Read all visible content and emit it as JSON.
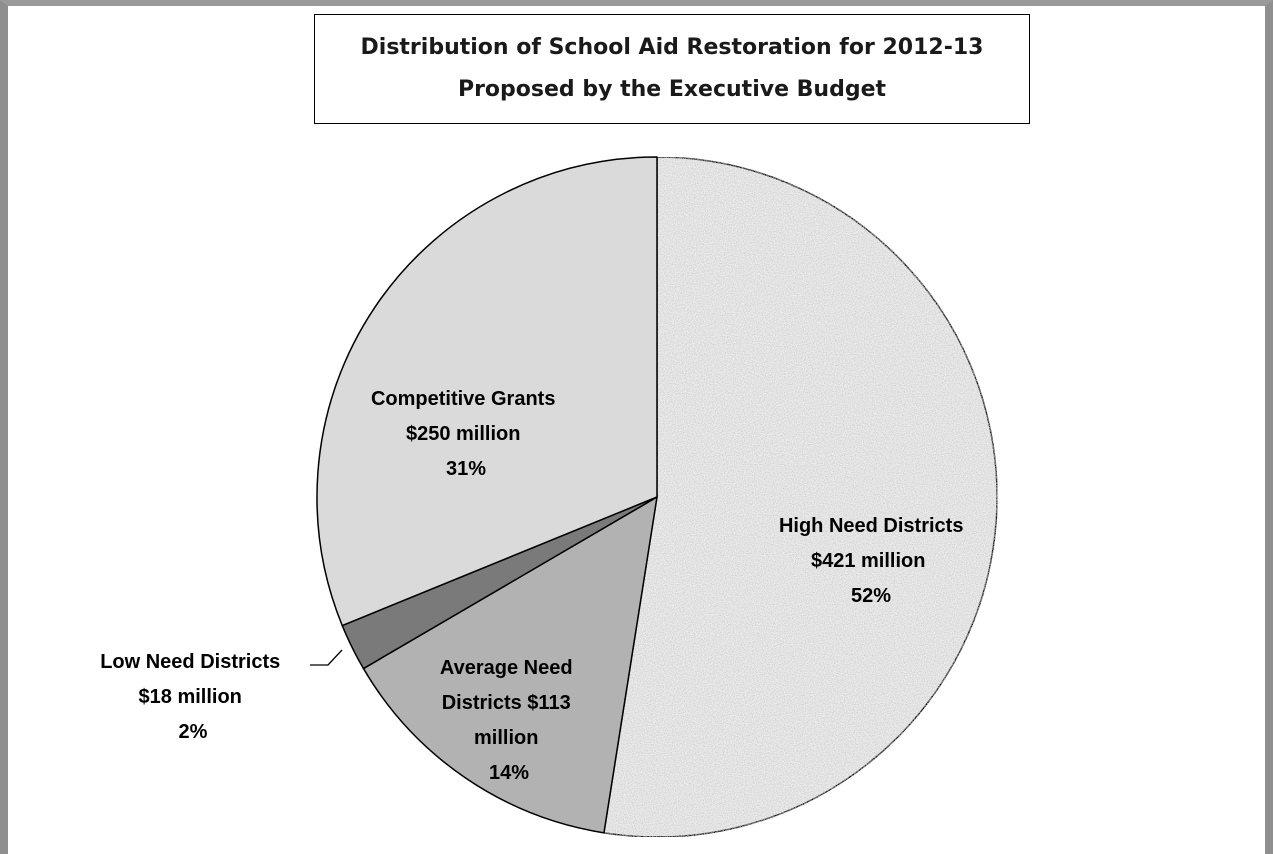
{
  "chart_data": {
    "type": "pie",
    "title": "Distribution of School Aid Restoration for 2012-13",
    "subtitle": "Proposed by the Executive Budget",
    "slices": [
      {
        "name": "High Need Districts",
        "label_line1": "High Need  Districts",
        "label_line2": "$421 million",
        "label_line3": "52%",
        "value": 421,
        "percent": 52,
        "color": "#ececec"
      },
      {
        "name": "Average Need Districts",
        "label_line1": "Average Need",
        "label_line2": "Districts $113",
        "label_line3": "million",
        "label_line4": "14%",
        "value": 113,
        "percent": 14,
        "color": "#b2b2b2"
      },
      {
        "name": "Low Need Districts",
        "label_line1": "Low Need Districts",
        "label_line2": "$18 million",
        "label_line3": "2%",
        "value": 18,
        "percent": 2,
        "color": "#7a7a7a"
      },
      {
        "name": "Competitive Grants",
        "label_line1": "Competitive Grants",
        "label_line2": "$250 million",
        "label_line3": "31%",
        "value": 250,
        "percent": 31,
        "color": "#dadada"
      }
    ],
    "start_angle_deg": 0,
    "direction": "clockwise",
    "legend": "none"
  }
}
